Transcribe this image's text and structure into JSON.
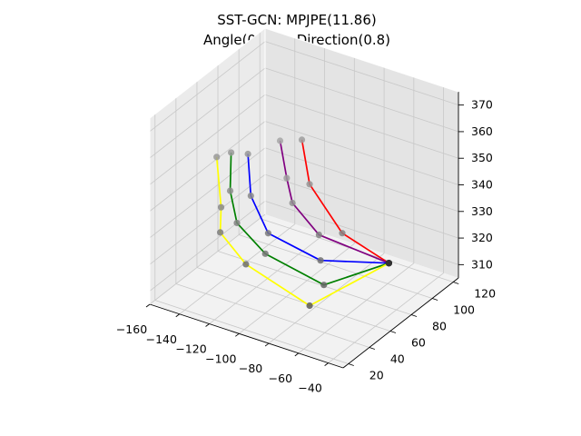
{
  "chart_data": {
    "type": "line3d",
    "title": "SST-GCN: MPJPE(11.86)",
    "subtitle": "Angle(0.56) - Direction(0.8)",
    "xlabel": "",
    "ylabel": "",
    "zlabel": "",
    "grid": true,
    "xlim": [
      -160,
      -30
    ],
    "ylim": [
      15,
      125
    ],
    "zlim": [
      305,
      375
    ],
    "x_ticks": [
      "−160",
      "−140",
      "−120",
      "−100",
      "−80",
      "−60",
      "−40"
    ],
    "y_ticks": [
      "20",
      "40",
      "60",
      "80",
      "100",
      "120"
    ],
    "z_ticks": [
      "310",
      "320",
      "330",
      "340",
      "350",
      "360",
      "370"
    ],
    "colors": {
      "pane_left": "#ebebeb",
      "pane_right": "#e4e4e4",
      "pane_floor": "#f2f2f2",
      "grid": "#c8c8c8",
      "wrist_joint": "#333333"
    },
    "series": [
      {
        "color": "#ff0000",
        "points": [
          {
            "x": -38,
            "y": 70,
            "z": 326
          },
          {
            "x": -75,
            "y": 78,
            "z": 328
          },
          {
            "x": -104,
            "y": 88,
            "z": 338
          },
          {
            "x": -112,
            "y": 92,
            "z": 352
          }
        ]
      },
      {
        "color": "#800080",
        "points": [
          {
            "x": -38,
            "y": 70,
            "z": 326
          },
          {
            "x": -85,
            "y": 70,
            "z": 328
          },
          {
            "x": -112,
            "y": 83,
            "z": 331
          },
          {
            "x": -125,
            "y": 96,
            "z": 334
          },
          {
            "x": -133,
            "y": 101,
            "z": 345
          }
        ]
      },
      {
        "color": "#0000ff",
        "points": [
          {
            "x": -38,
            "y": 70,
            "z": 326
          },
          {
            "x": -72,
            "y": 53,
            "z": 326
          },
          {
            "x": -110,
            "y": 57,
            "z": 328
          },
          {
            "x": -128,
            "y": 66,
            "z": 336
          },
          {
            "x": -137,
            "y": 76,
            "z": 347
          }
        ]
      },
      {
        "color": "#008000",
        "points": [
          {
            "x": -38,
            "y": 70,
            "z": 326
          },
          {
            "x": -62,
            "y": 42,
            "z": 322
          },
          {
            "x": -107,
            "y": 50,
            "z": 323
          },
          {
            "x": -131,
            "y": 57,
            "z": 328
          },
          {
            "x": -144,
            "y": 69,
            "z": 334
          },
          {
            "x": -149,
            "y": 77,
            "z": 345
          }
        ]
      },
      {
        "color": "#ffff00",
        "points": [
          {
            "x": -38,
            "y": 70,
            "z": 326
          },
          {
            "x": -61,
            "y": 27,
            "z": 319
          },
          {
            "x": -113,
            "y": 40,
            "z": 321
          },
          {
            "x": -138,
            "y": 51,
            "z": 325
          },
          {
            "x": -148,
            "y": 66,
            "z": 328
          },
          {
            "x": -158,
            "y": 76,
            "z": 342
          }
        ]
      }
    ]
  }
}
